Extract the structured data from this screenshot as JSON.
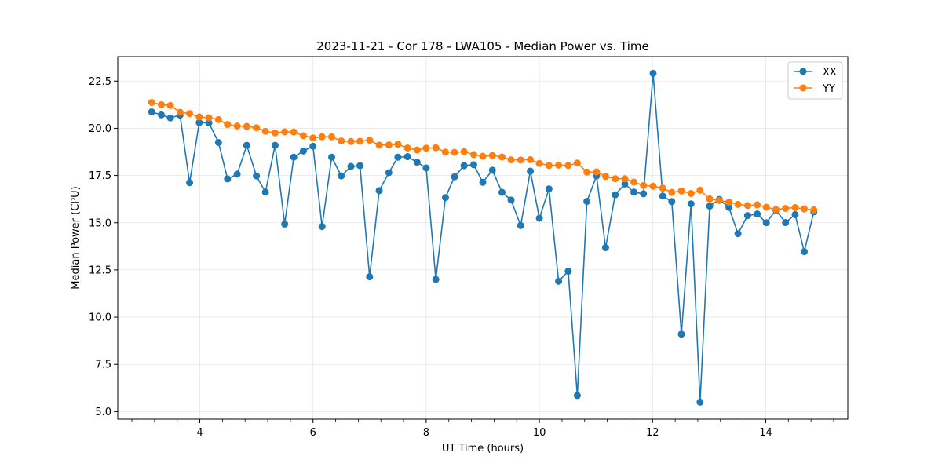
{
  "chart_data": {
    "type": "line",
    "title": "2023-11-21 - Cor 178 - LWA105 - Median Power vs. Time",
    "xlabel": "UT Time (hours)",
    "ylabel": "Median Power (CPU)",
    "xlim": [
      2.55,
      15.45
    ],
    "ylim": [
      4.6,
      23.8
    ],
    "xticks": [
      4,
      6,
      8,
      10,
      12,
      14
    ],
    "xtick_labels": [
      "4",
      "6",
      "8",
      "10",
      "12",
      "14"
    ],
    "xminor_step": 0.4,
    "yticks": [
      5.0,
      7.5,
      10.0,
      12.5,
      15.0,
      17.5,
      20.0,
      22.5
    ],
    "ytick_labels": [
      "5.0",
      "7.5",
      "10.0",
      "12.5",
      "15.0",
      "17.5",
      "20.0",
      "22.5"
    ],
    "grid": true,
    "legend_position": "top-right",
    "x": [
      3.15,
      3.32,
      3.48,
      3.65,
      3.82,
      3.99,
      4.16,
      4.33,
      4.49,
      4.66,
      4.83,
      5.0,
      5.16,
      5.33,
      5.5,
      5.66,
      5.83,
      6.0,
      6.16,
      6.33,
      6.5,
      6.67,
      6.83,
      7.0,
      7.17,
      7.34,
      7.5,
      7.67,
      7.84,
      8.0,
      8.17,
      8.34,
      8.5,
      8.67,
      8.84,
      9.0,
      9.17,
      9.34,
      9.5,
      9.67,
      9.84,
      10.0,
      10.17,
      10.34,
      10.51,
      10.67,
      10.84,
      11.01,
      11.17,
      11.34,
      11.51,
      11.67,
      11.84,
      12.01,
      12.18,
      12.34,
      12.51,
      12.68,
      12.84,
      13.01,
      13.18,
      13.35,
      13.51,
      13.68,
      13.85,
      14.01,
      14.18,
      14.35,
      14.52,
      14.68,
      14.85
    ],
    "series": [
      {
        "name": "XX",
        "color": "#1f77b4",
        "values": [
          20.87,
          20.71,
          20.55,
          20.7,
          17.12,
          20.3,
          20.29,
          19.25,
          17.32,
          17.57,
          19.1,
          17.48,
          16.62,
          19.1,
          14.93,
          18.47,
          18.8,
          19.05,
          14.8,
          18.47,
          17.48,
          17.98,
          18.02,
          12.14,
          16.7,
          17.65,
          18.47,
          18.5,
          18.2,
          17.9,
          12.0,
          16.33,
          17.43,
          18.02,
          18.07,
          17.14,
          17.78,
          16.61,
          16.2,
          14.85,
          17.73,
          15.24,
          16.79,
          11.9,
          12.43,
          5.85,
          16.13,
          17.48,
          13.68,
          16.48,
          17.05,
          16.62,
          16.53,
          22.91,
          16.41,
          16.12,
          9.1,
          16.0,
          5.5,
          15.88,
          16.23,
          15.81,
          14.42,
          15.38,
          15.46,
          15.0,
          15.67,
          15.01,
          15.43,
          13.47,
          15.58
        ]
      },
      {
        "name": "YY",
        "color": "#ff7f0e",
        "values": [
          21.37,
          21.25,
          21.21,
          20.85,
          20.78,
          20.6,
          20.56,
          20.46,
          20.2,
          20.12,
          20.1,
          20.03,
          19.84,
          19.76,
          19.81,
          19.8,
          19.61,
          19.49,
          19.55,
          19.55,
          19.33,
          19.3,
          19.31,
          19.37,
          19.11,
          19.12,
          19.16,
          18.96,
          18.85,
          18.95,
          18.97,
          18.74,
          18.73,
          18.76,
          18.61,
          18.52,
          18.56,
          18.48,
          18.33,
          18.32,
          18.34,
          18.14,
          18.03,
          18.05,
          18.03,
          18.16,
          17.68,
          17.69,
          17.45,
          17.33,
          17.33,
          17.15,
          16.97,
          16.93,
          16.83,
          16.61,
          16.68,
          16.55,
          16.72,
          16.26,
          16.18,
          16.09,
          15.97,
          15.91,
          15.95,
          15.82,
          15.7,
          15.76,
          15.8,
          15.73,
          15.68
        ]
      }
    ]
  }
}
